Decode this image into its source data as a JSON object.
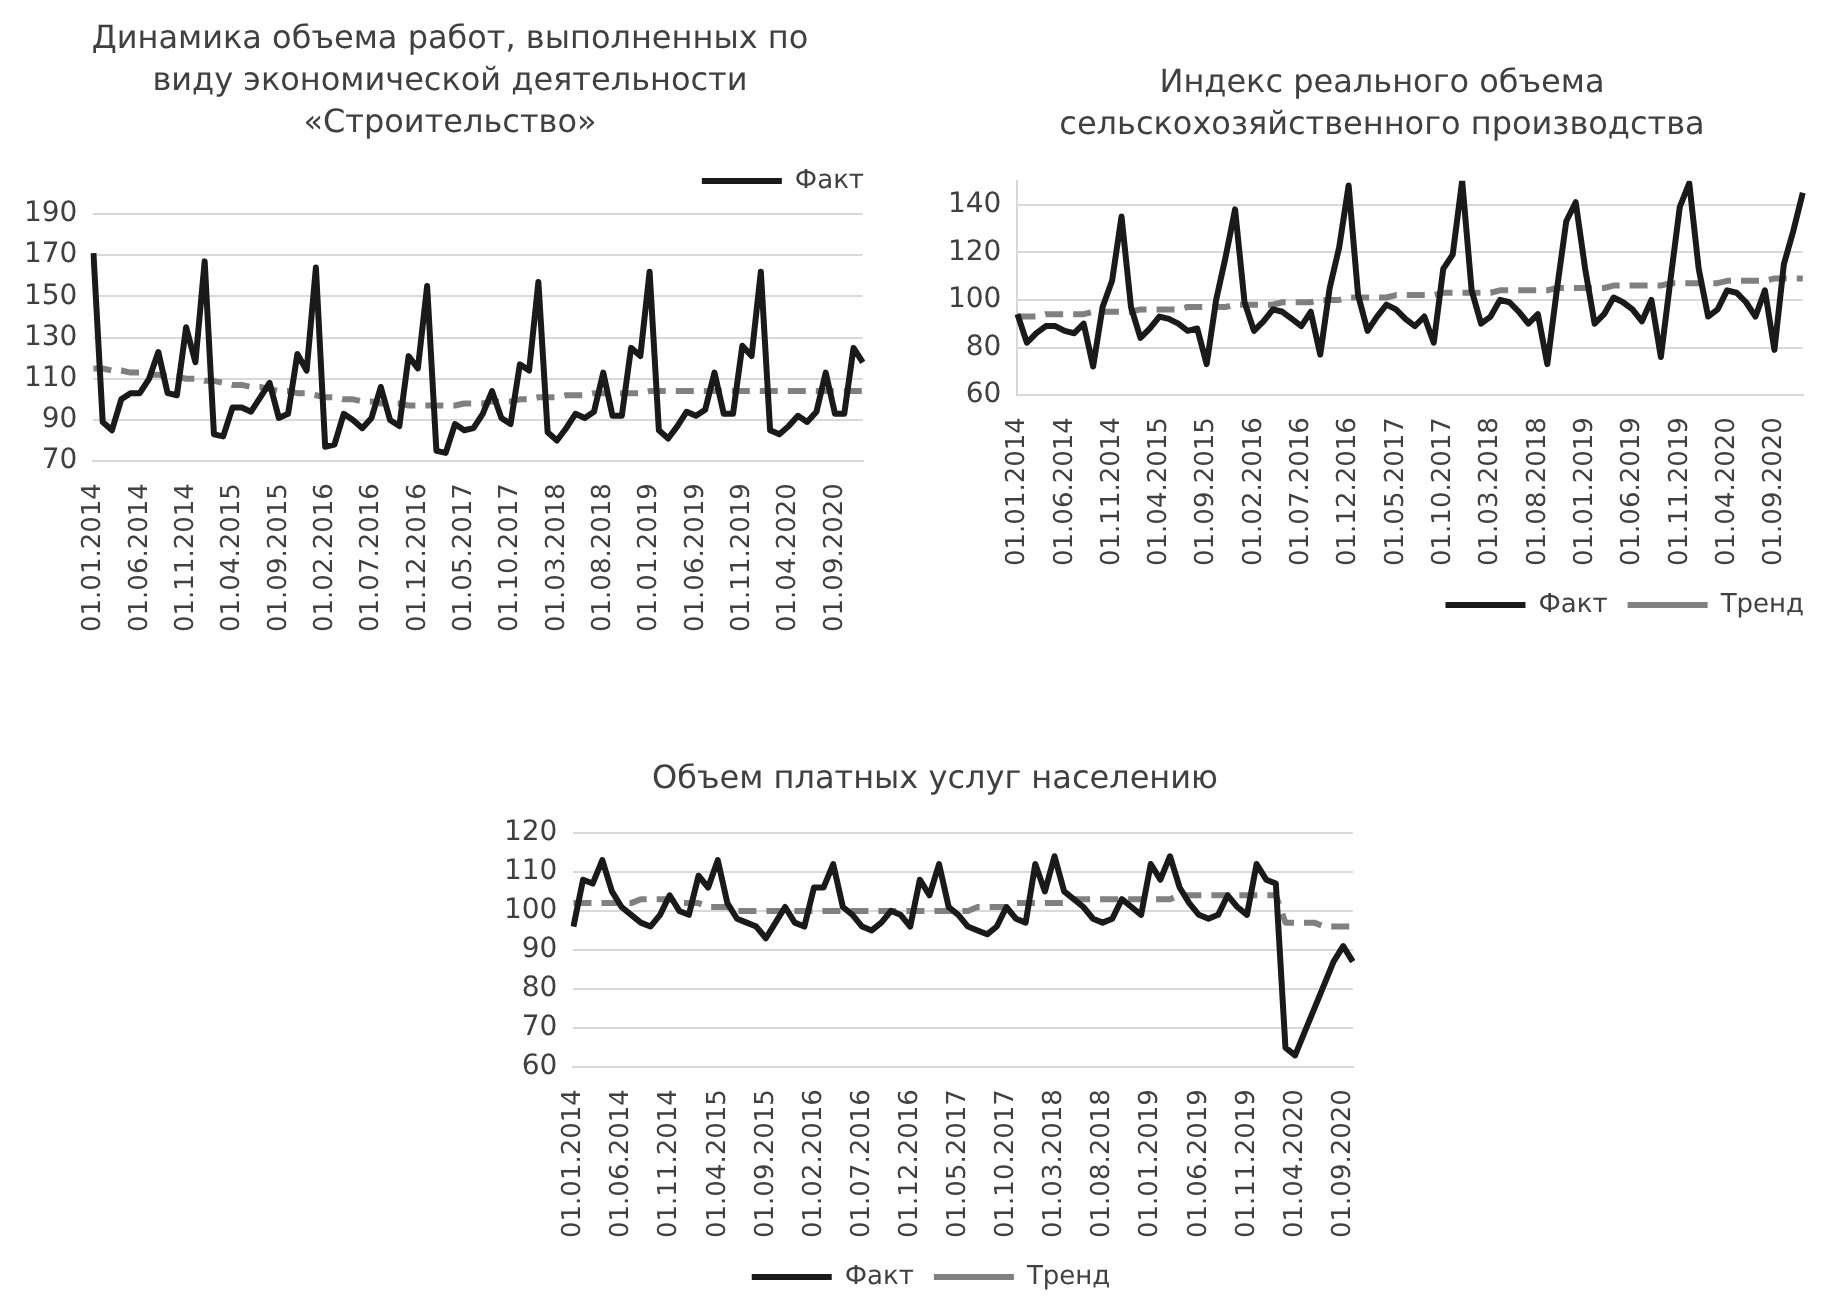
{
  "chart_data": [
    {
      "type": "line",
      "title": "Динамика объема работ, выполненных по виду экономической деятельности «Строительство»",
      "categories": [
        "01.01.2014",
        null,
        null,
        null,
        null,
        "01.06.2014",
        null,
        null,
        null,
        null,
        "01.11.2014",
        null,
        null,
        null,
        null,
        "01.04.2015",
        null,
        null,
        null,
        null,
        "01.09.2015",
        null,
        null,
        null,
        null,
        "01.02.2016",
        null,
        null,
        null,
        null,
        "01.07.2016",
        null,
        null,
        null,
        null,
        "01.12.2016",
        null,
        null,
        null,
        null,
        "01.05.2017",
        null,
        null,
        null,
        null,
        "01.10.2017",
        null,
        null,
        null,
        null,
        "01.03.2018",
        null,
        null,
        null,
        null,
        "01.08.2018",
        null,
        null,
        null,
        null,
        "01.01.2019",
        null,
        null,
        null,
        null,
        "01.06.2019",
        null,
        null,
        null,
        null,
        "01.11.2019",
        null,
        null,
        null,
        null,
        "01.04.2020",
        null,
        null,
        null,
        null,
        "01.09.2020",
        null,
        null,
        null
      ],
      "series": [
        {
          "name": "Факт",
          "color": "#1a1a1a",
          "line_style": "solid",
          "values": [
            171,
            89,
            85,
            100,
            103,
            103,
            110,
            123,
            103,
            102,
            135,
            118,
            167,
            83,
            82,
            96,
            96,
            94,
            101,
            108,
            91,
            93,
            122,
            114,
            164,
            77,
            78,
            93,
            90,
            86,
            91,
            106,
            90,
            87,
            121,
            115,
            155,
            75,
            74,
            88,
            85,
            86,
            93,
            104,
            91,
            88,
            117,
            114,
            157,
            84,
            80,
            86,
            93,
            91,
            94,
            113,
            92,
            92,
            125,
            121,
            162,
            85,
            81,
            87,
            94,
            92,
            95,
            113,
            93,
            93,
            126,
            121,
            162,
            85,
            83,
            87,
            92,
            89,
            94,
            113,
            93,
            93,
            125,
            118
          ]
        },
        {
          "color": "#808080",
          "line_style": "dashed",
          "values": [
            115,
            115,
            114,
            114,
            113,
            113,
            112,
            112,
            111,
            111,
            110,
            110,
            109,
            109,
            108,
            107,
            107,
            106,
            106,
            105,
            104,
            104,
            103,
            103,
            102,
            101,
            101,
            100,
            100,
            99,
            99,
            98,
            98,
            98,
            97,
            97,
            97,
            97,
            97,
            97,
            98,
            98,
            98,
            99,
            99,
            99,
            100,
            100,
            101,
            101,
            101,
            102,
            102,
            102,
            103,
            103,
            103,
            103,
            103,
            103,
            104,
            104,
            104,
            104,
            104,
            104,
            104,
            104,
            104,
            104,
            104,
            104,
            104,
            104,
            104,
            104,
            104,
            104,
            104,
            104,
            104,
            104,
            104,
            104
          ]
        }
      ],
      "ylim": [
        70,
        190
      ],
      "yticks": [
        70,
        90,
        110,
        130,
        150,
        170,
        190
      ],
      "grid": "y",
      "legend": "top right"
    },
    {
      "type": "line",
      "title": "Индекс реального объема сельскохозяйственного производства",
      "categories": [
        "01.01.2014",
        null,
        null,
        null,
        null,
        "01.06.2014",
        null,
        null,
        null,
        null,
        "01.11.2014",
        null,
        null,
        null,
        null,
        "01.04.2015",
        null,
        null,
        null,
        null,
        "01.09.2015",
        null,
        null,
        null,
        null,
        "01.02.2016",
        null,
        null,
        null,
        null,
        "01.07.2016",
        null,
        null,
        null,
        null,
        "01.12.2016",
        null,
        null,
        null,
        null,
        "01.05.2017",
        null,
        null,
        null,
        null,
        "01.10.2017",
        null,
        null,
        null,
        null,
        "01.03.2018",
        null,
        null,
        null,
        null,
        "01.08.2018",
        null,
        null,
        null,
        null,
        "01.01.2019",
        null,
        null,
        null,
        null,
        "01.06.2019",
        null,
        null,
        null,
        null,
        "01.11.2019",
        null,
        null,
        null,
        null,
        "01.04.2020",
        null,
        null,
        null,
        null,
        "01.09.2020",
        null,
        null,
        null
      ],
      "series": [
        {
          "name": "Факт",
          "color": "#1a1a1a",
          "line_style": "solid",
          "values": [
            94,
            82,
            86,
            89,
            89,
            87,
            86,
            90,
            72,
            97,
            108,
            135,
            97,
            84,
            88,
            93,
            92,
            90,
            87,
            88,
            73,
            100,
            118,
            138,
            99,
            87,
            91,
            96,
            95,
            92,
            89,
            95,
            77,
            105,
            122,
            148,
            102,
            87,
            93,
            98,
            96,
            92,
            89,
            93,
            82,
            113,
            119,
            150,
            104,
            90,
            93,
            100,
            99,
            95,
            90,
            94,
            73,
            104,
            133,
            141,
            113,
            90,
            94,
            101,
            99,
            96,
            91,
            100,
            76,
            108,
            139,
            149,
            113,
            93,
            96,
            104,
            103,
            99,
            93,
            104,
            79,
            115,
            129,
            145
          ]
        },
        {
          "name": "Тренд",
          "color": "#808080",
          "line_style": "dashed",
          "values": [
            93,
            93,
            93,
            94,
            94,
            94,
            94,
            94,
            95,
            95,
            95,
            95,
            95,
            96,
            96,
            96,
            96,
            96,
            97,
            97,
            97,
            97,
            97,
            98,
            98,
            98,
            98,
            98,
            99,
            99,
            99,
            99,
            100,
            100,
            100,
            101,
            101,
            101,
            101,
            101,
            102,
            102,
            102,
            102,
            102,
            103,
            103,
            103,
            103,
            103,
            103,
            104,
            104,
            104,
            104,
            104,
            104,
            105,
            105,
            105,
            105,
            105,
            105,
            106,
            106,
            106,
            106,
            106,
            106,
            107,
            107,
            107,
            107,
            107,
            107,
            108,
            108,
            108,
            108,
            108,
            109,
            109,
            109,
            109
          ]
        }
      ],
      "ylim": [
        60,
        150
      ],
      "yticks": [
        60,
        80,
        100,
        120,
        140
      ],
      "grid": "y",
      "legend": "bottom right"
    },
    {
      "type": "line",
      "title": "Объем платных услуг населению",
      "categories": [
        "01.01.2014",
        null,
        null,
        null,
        null,
        "01.06.2014",
        null,
        null,
        null,
        null,
        "01.11.2014",
        null,
        null,
        null,
        null,
        "01.04.2015",
        null,
        null,
        null,
        null,
        "01.09.2015",
        null,
        null,
        null,
        null,
        "01.02.2016",
        null,
        null,
        null,
        null,
        "01.07.2016",
        null,
        null,
        null,
        null,
        "01.12.2016",
        null,
        null,
        null,
        null,
        "01.05.2017",
        null,
        null,
        null,
        null,
        "01.10.2017",
        null,
        null,
        null,
        null,
        "01.03.2018",
        null,
        null,
        null,
        null,
        "01.08.2018",
        null,
        null,
        null,
        null,
        "01.01.2019",
        null,
        null,
        null,
        null,
        "01.06.2019",
        null,
        null,
        null,
        null,
        "01.11.2019",
        null,
        null,
        null,
        null,
        "01.04.2020",
        null,
        null,
        null,
        null,
        "01.09.2020",
        null
      ],
      "series": [
        {
          "name": "Факт",
          "color": "#1a1a1a",
          "line_style": "solid",
          "values": [
            96,
            108,
            107,
            113,
            105,
            101,
            99,
            97,
            96,
            99,
            104,
            100,
            99,
            109,
            106,
            113,
            102,
            98,
            97,
            96,
            93,
            97,
            101,
            97,
            96,
            106,
            106,
            112,
            101,
            99,
            96,
            95,
            97,
            100,
            99,
            96,
            108,
            104,
            112,
            101,
            99,
            96,
            95,
            94,
            96,
            101,
            98,
            97,
            112,
            105,
            114,
            105,
            103,
            101,
            98,
            97,
            98,
            103,
            101,
            99,
            112,
            108,
            114,
            106,
            102,
            99,
            98,
            99,
            104,
            101,
            99,
            112,
            108,
            107,
            65,
            63,
            69,
            75,
            81,
            87,
            91,
            87
          ]
        },
        {
          "name": "Тренд",
          "color": "#808080",
          "line_style": "dashed",
          "values": [
            102,
            102,
            102,
            102,
            102,
            102,
            102,
            103,
            103,
            103,
            103,
            102,
            102,
            102,
            101,
            101,
            101,
            100,
            100,
            100,
            100,
            100,
            100,
            100,
            100,
            100,
            100,
            100,
            100,
            100,
            100,
            100,
            100,
            100,
            100,
            100,
            100,
            100,
            100,
            100,
            100,
            100,
            101,
            101,
            101,
            101,
            102,
            102,
            102,
            102,
            102,
            102,
            103,
            103,
            103,
            103,
            103,
            103,
            103,
            103,
            103,
            103,
            103,
            104,
            104,
            104,
            104,
            104,
            104,
            104,
            104,
            104,
            104,
            104,
            97,
            97,
            97,
            97,
            96,
            96,
            96,
            96
          ]
        }
      ],
      "ylim": [
        60,
        120
      ],
      "yticks": [
        60,
        70,
        80,
        90,
        100,
        110,
        120
      ],
      "grid": "y",
      "legend": "bottom"
    }
  ]
}
